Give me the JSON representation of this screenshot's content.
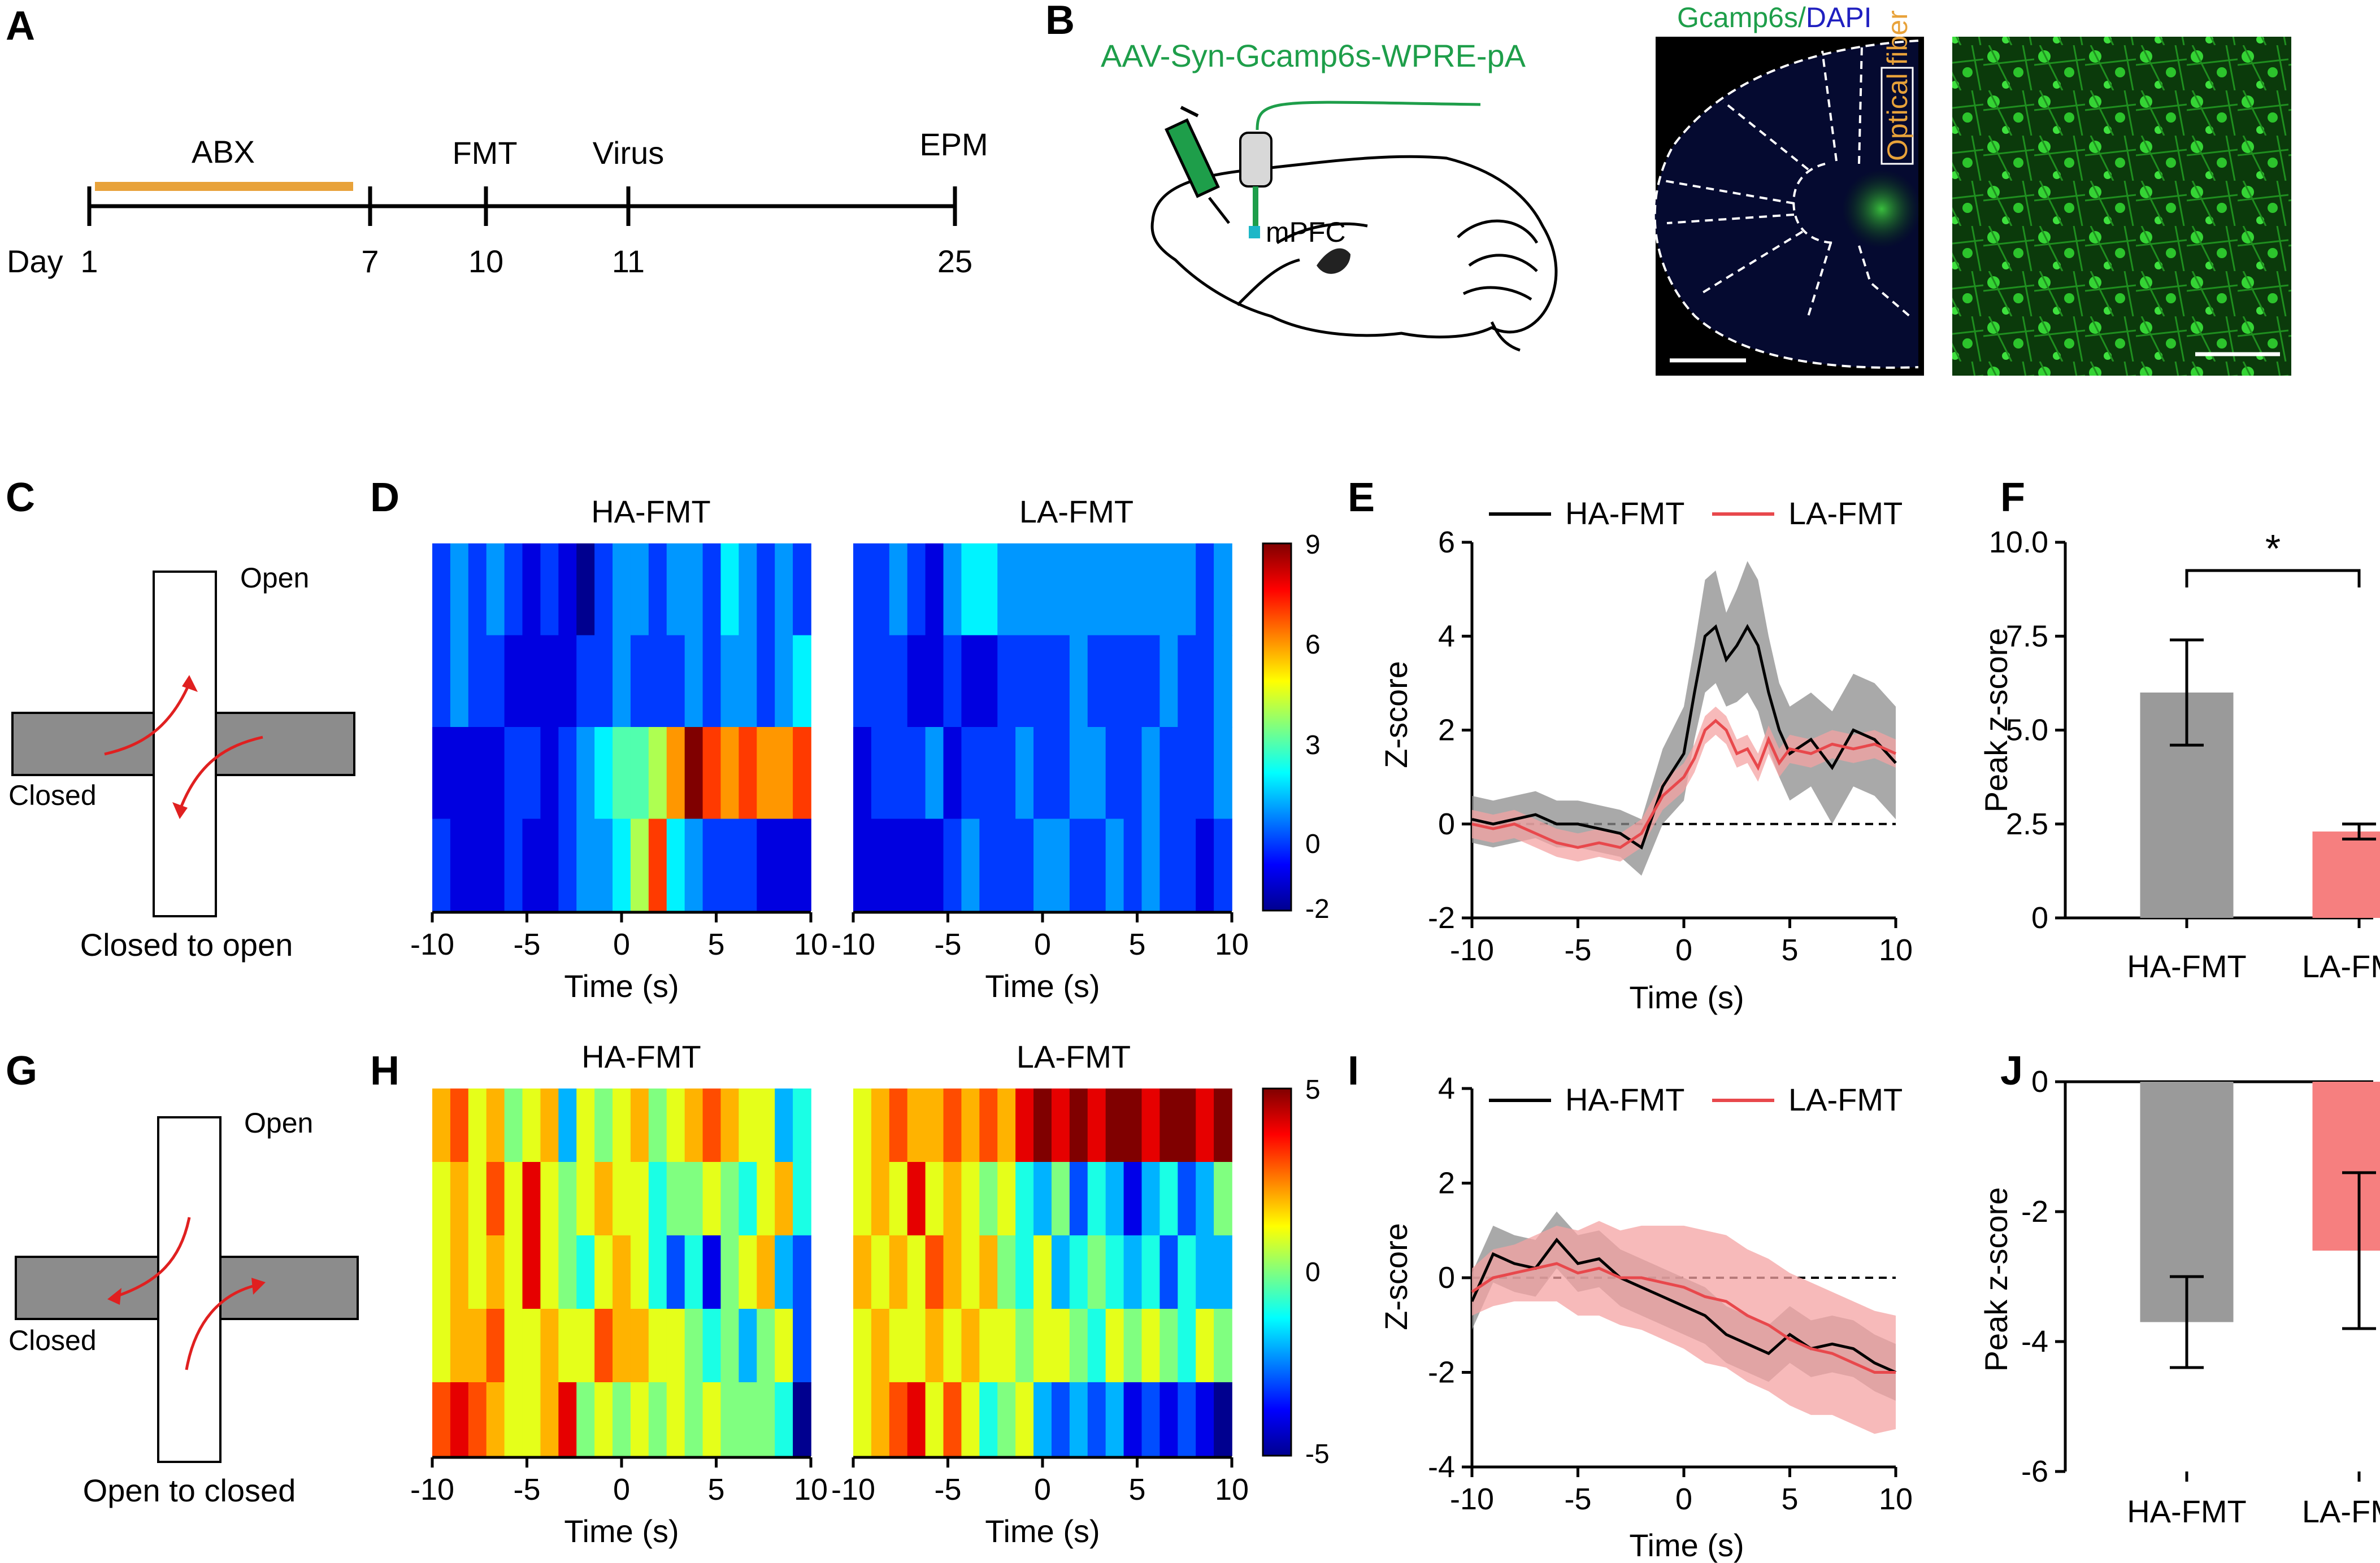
{
  "panels": {
    "A": "A",
    "B": "B",
    "C": "C",
    "D": "D",
    "E": "E",
    "F": "F",
    "G": "G",
    "H": "H",
    "I": "I",
    "J": "J"
  },
  "timeline": {
    "day_label": "Day",
    "ticks": [
      "1",
      "7",
      "10",
      "11",
      "25"
    ],
    "events": [
      "ABX",
      "FMT",
      "Virus",
      "EPM"
    ],
    "abx_color": "#e8a23a"
  },
  "panelB": {
    "virus": "AAV-Syn-Gcamp6s-WPRE-pA",
    "region": "mPFC",
    "stain_green": "Gcamp6s",
    "stain_sep": "/",
    "stain_blue": "DAPI",
    "fiber": "Optical fiber"
  },
  "maze": {
    "open": "Open",
    "closed": "Closed",
    "caption_c": "Closed to open",
    "caption_g": "Open to closed"
  },
  "colors": {
    "ha": "#000000",
    "la": "#e8484c",
    "ha_fill": "#8c8c8c",
    "la_fill": "#f4a3a3",
    "ha_bar": "#9a9a9a",
    "la_bar": "#f67f7f"
  },
  "heatmap_axis": {
    "ticks": [
      "-10",
      "-5",
      "0",
      "5",
      "10"
    ],
    "xlabel": "Time (s)"
  },
  "heatmapD": {
    "titles": [
      "HA-FMT",
      "LA-FMT"
    ],
    "colorbar_ticks": [
      "9",
      "6",
      "3",
      "0",
      "-2"
    ],
    "vmin": -2,
    "vmax": 9
  },
  "heatmapH": {
    "titles": [
      "HA-FMT",
      "LA-FMT"
    ],
    "colorbar_ticks": [
      "5",
      "0",
      "-5"
    ],
    "vmin": -5,
    "vmax": 5
  },
  "legend": {
    "ha": "HA-FMT",
    "la": "LA-FMT"
  },
  "ylabel_z": "Z-score",
  "ylabel_peak": "Peak z-score",
  "chart_data": [
    {
      "id": "D",
      "type": "heatmap",
      "title": "HA-FMT",
      "xlabel": "Time (s)",
      "x": [
        -10,
        -9,
        -8,
        -7,
        -6,
        -5,
        -4,
        -3,
        -2,
        -1,
        0,
        1,
        2,
        3,
        4,
        5,
        6,
        7,
        8,
        9,
        10
      ],
      "rows": [
        [
          0,
          1,
          0,
          1,
          0,
          -1,
          0,
          -1,
          -2,
          0,
          1,
          1,
          0,
          1,
          1,
          0,
          2,
          1,
          0,
          1,
          0
        ],
        [
          0,
          1,
          0,
          0,
          -1,
          -1,
          -1,
          -1,
          0,
          0,
          1,
          0,
          0,
          0,
          1,
          0,
          1,
          1,
          0,
          1,
          2
        ],
        [
          -1,
          -1,
          -1,
          -1,
          0,
          0,
          -1,
          0,
          1,
          2,
          3,
          3,
          4,
          6,
          9,
          7,
          6,
          7,
          6,
          6,
          7
        ],
        [
          0,
          -1,
          -1,
          -1,
          0,
          -1,
          -1,
          0,
          1,
          1,
          2,
          4,
          7,
          2,
          1,
          0,
          0,
          0,
          -1,
          -1,
          -1
        ]
      ]
    },
    {
      "id": "D2",
      "type": "heatmap",
      "title": "LA-FMT",
      "xlabel": "Time (s)",
      "x": [
        -10,
        -9,
        -8,
        -7,
        -6,
        -5,
        -4,
        -3,
        -2,
        -1,
        0,
        1,
        2,
        3,
        4,
        5,
        6,
        7,
        8,
        9,
        10
      ],
      "rows": [
        [
          0,
          0,
          1,
          0,
          -1,
          1,
          2,
          2,
          1,
          1,
          1,
          1,
          1,
          1,
          1,
          1,
          1,
          1,
          1,
          0,
          1
        ],
        [
          0,
          0,
          0,
          -1,
          -1,
          0,
          -1,
          -1,
          0,
          0,
          0,
          0,
          1,
          0,
          0,
          0,
          0,
          1,
          0,
          0,
          1
        ],
        [
          -1,
          0,
          0,
          0,
          1,
          -1,
          0,
          0,
          0,
          1,
          0,
          0,
          1,
          1,
          0,
          0,
          1,
          0,
          0,
          0,
          1
        ],
        [
          -1,
          -1,
          -1,
          -1,
          -1,
          0,
          1,
          0,
          0,
          0,
          1,
          1,
          0,
          0,
          1,
          0,
          1,
          0,
          0,
          -1,
          0
        ]
      ]
    },
    {
      "id": "E",
      "type": "line",
      "xlabel": "Time (s)",
      "ylabel": "Z-score",
      "xlim": [
        -10,
        10
      ],
      "ylim": [
        -2,
        6
      ],
      "yticks": [
        -2,
        0,
        2,
        4,
        6
      ],
      "xticks": [
        -10,
        -5,
        0,
        5,
        10
      ],
      "x": [
        -10,
        -9,
        -8,
        -7,
        -6,
        -5,
        -4,
        -3,
        -2,
        -1,
        0,
        0.5,
        1,
        1.5,
        2,
        2.5,
        3,
        3.5,
        4,
        4.5,
        5,
        6,
        7,
        8,
        9,
        10
      ],
      "series": [
        {
          "name": "HA-FMT",
          "values": [
            0.1,
            0,
            0.1,
            0.2,
            0,
            0,
            -0.1,
            -0.2,
            -0.5,
            0.8,
            1.5,
            2.8,
            4.0,
            4.2,
            3.5,
            3.8,
            4.2,
            3.8,
            2.8,
            2.0,
            1.5,
            1.8,
            1.2,
            2.0,
            1.8,
            1.3
          ],
          "err": [
            0.5,
            0.5,
            0.5,
            0.5,
            0.5,
            0.5,
            0.5,
            0.5,
            0.6,
            0.8,
            1.0,
            1.0,
            1.2,
            1.2,
            1.0,
            1.2,
            1.4,
            1.4,
            1.2,
            1.0,
            1.0,
            1.0,
            1.2,
            1.2,
            1.2,
            1.2
          ]
        },
        {
          "name": "LA-FMT",
          "values": [
            0,
            -0.1,
            0,
            -0.2,
            -0.4,
            -0.5,
            -0.4,
            -0.5,
            -0.2,
            0.6,
            1.0,
            1.4,
            2.0,
            2.2,
            2.0,
            1.5,
            1.6,
            1.2,
            1.8,
            1.3,
            1.6,
            1.5,
            1.7,
            1.6,
            1.7,
            1.5
          ],
          "err": [
            0.3,
            0.3,
            0.3,
            0.3,
            0.3,
            0.3,
            0.3,
            0.3,
            0.3,
            0.3,
            0.3,
            0.3,
            0.3,
            0.3,
            0.3,
            0.3,
            0.3,
            0.3,
            0.3,
            0.3,
            0.3,
            0.3,
            0.3,
            0.3,
            0.3,
            0.3
          ]
        }
      ]
    },
    {
      "id": "F",
      "type": "bar",
      "ylabel": "Peak z-score",
      "categories": [
        "HA-FMT",
        "LA-FMT"
      ],
      "values": [
        6.0,
        2.3
      ],
      "err": [
        1.4,
        0.2
      ],
      "ylim": [
        0,
        10
      ],
      "yticks": [
        "0",
        "2.5",
        "5.0",
        "7.5",
        "10.0"
      ],
      "significance": "*"
    },
    {
      "id": "H",
      "type": "heatmap",
      "title": "HA-FMT",
      "xlabel": "Time (s)",
      "x": [
        -10,
        -9,
        -8,
        -7,
        -6,
        -5,
        -4,
        -3,
        -2,
        -1,
        0,
        1,
        2,
        3,
        4,
        5,
        6,
        7,
        8,
        9,
        10
      ],
      "rows": [
        [
          2,
          3,
          1,
          2,
          0,
          1,
          2,
          -2,
          1,
          0,
          1,
          2,
          0,
          1,
          2,
          3,
          2,
          1,
          1,
          -2,
          -1
        ],
        [
          1,
          2,
          1,
          3,
          1,
          4,
          1,
          0,
          1,
          2,
          1,
          1,
          -1,
          0,
          0,
          1,
          0,
          -1,
          1,
          2,
          -1
        ],
        [
          1,
          2,
          1,
          2,
          1,
          4,
          1,
          0,
          -1,
          1,
          2,
          1,
          -1,
          -3,
          -1,
          -4,
          0,
          1,
          2,
          -2,
          -3
        ],
        [
          1,
          2,
          2,
          3,
          1,
          1,
          2,
          1,
          1,
          3,
          2,
          2,
          1,
          1,
          0,
          -1,
          0,
          -2,
          0,
          1,
          -3
        ],
        [
          3,
          4,
          3,
          2,
          1,
          1,
          2,
          4,
          0,
          1,
          0,
          1,
          0,
          1,
          0,
          1,
          0,
          0,
          0,
          -1,
          -5
        ]
      ]
    },
    {
      "id": "H2",
      "type": "heatmap",
      "title": "LA-FMT",
      "xlabel": "Time (s)",
      "x": [
        -10,
        -9,
        -8,
        -7,
        -6,
        -5,
        -4,
        -3,
        -2,
        -1,
        0,
        1,
        2,
        3,
        4,
        5,
        6,
        7,
        8,
        9,
        10
      ],
      "rows": [
        [
          1,
          2,
          3,
          2,
          2,
          3,
          2,
          3,
          2,
          4,
          5,
          4,
          5,
          4,
          5,
          5,
          4,
          5,
          5,
          4,
          5
        ],
        [
          1,
          2,
          1,
          4,
          1,
          2,
          1,
          0,
          1,
          -1,
          -2,
          0,
          -3,
          -1,
          -2,
          -4,
          -2,
          -1,
          -3,
          -2,
          0
        ],
        [
          2,
          1,
          2,
          1,
          3,
          2,
          1,
          2,
          0,
          -1,
          1,
          -2,
          -1,
          0,
          -1,
          -2,
          -1,
          -3,
          -1,
          -2,
          -2
        ],
        [
          1,
          2,
          1,
          1,
          2,
          1,
          2,
          1,
          1,
          0,
          1,
          1,
          0,
          -1,
          1,
          0,
          1,
          0,
          -1,
          1,
          0
        ],
        [
          1,
          2,
          3,
          4,
          1,
          3,
          1,
          -1,
          0,
          1,
          -2,
          -3,
          -2,
          -3,
          -2,
          -4,
          -3,
          -4,
          -3,
          -4,
          -5
        ]
      ]
    },
    {
      "id": "I",
      "type": "line",
      "xlabel": "Time (s)",
      "ylabel": "Z-score",
      "xlim": [
        -10,
        10
      ],
      "ylim": [
        -4,
        4
      ],
      "yticks": [
        -4,
        -2,
        0,
        2,
        4
      ],
      "xticks": [
        -10,
        -5,
        0,
        5,
        10
      ],
      "x": [
        -10,
        -9,
        -8,
        -7,
        -6,
        -5,
        -4,
        -3,
        -2,
        -1,
        0,
        1,
        2,
        3,
        4,
        5,
        6,
        7,
        8,
        9,
        10
      ],
      "series": [
        {
          "name": "HA-FMT",
          "values": [
            -0.5,
            0.5,
            0.3,
            0.2,
            0.8,
            0.3,
            0.4,
            0,
            -0.2,
            -0.4,
            -0.6,
            -0.8,
            -1.2,
            -1.4,
            -1.6,
            -1.2,
            -1.5,
            -1.4,
            -1.5,
            -1.8,
            -2.0
          ],
          "err": [
            0.6,
            0.6,
            0.6,
            0.6,
            0.6,
            0.6,
            0.6,
            0.6,
            0.6,
            0.6,
            0.6,
            0.6,
            0.6,
            0.6,
            0.6,
            0.6,
            0.6,
            0.6,
            0.6,
            0.6,
            0.6
          ]
        },
        {
          "name": "LA-FMT",
          "values": [
            -0.3,
            0,
            0.1,
            0.2,
            0.3,
            0.1,
            0.2,
            0,
            0,
            -0.1,
            -0.2,
            -0.4,
            -0.5,
            -0.8,
            -1.0,
            -1.3,
            -1.5,
            -1.6,
            -1.8,
            -2.0,
            -2.0
          ],
          "err": [
            0.5,
            0.6,
            0.6,
            0.7,
            0.8,
            0.9,
            1.0,
            1.0,
            1.1,
            1.2,
            1.3,
            1.4,
            1.4,
            1.4,
            1.4,
            1.4,
            1.4,
            1.3,
            1.3,
            1.3,
            1.2
          ]
        }
      ]
    },
    {
      "id": "J",
      "type": "bar",
      "ylabel": "Peak z-score",
      "categories": [
        "HA-FMT",
        "LA-FMT"
      ],
      "values": [
        -3.7,
        -2.6
      ],
      "err": [
        0.7,
        1.2
      ],
      "ylim": [
        -6,
        0
      ],
      "yticks": [
        "0",
        "-2",
        "-4",
        "-6"
      ]
    }
  ]
}
